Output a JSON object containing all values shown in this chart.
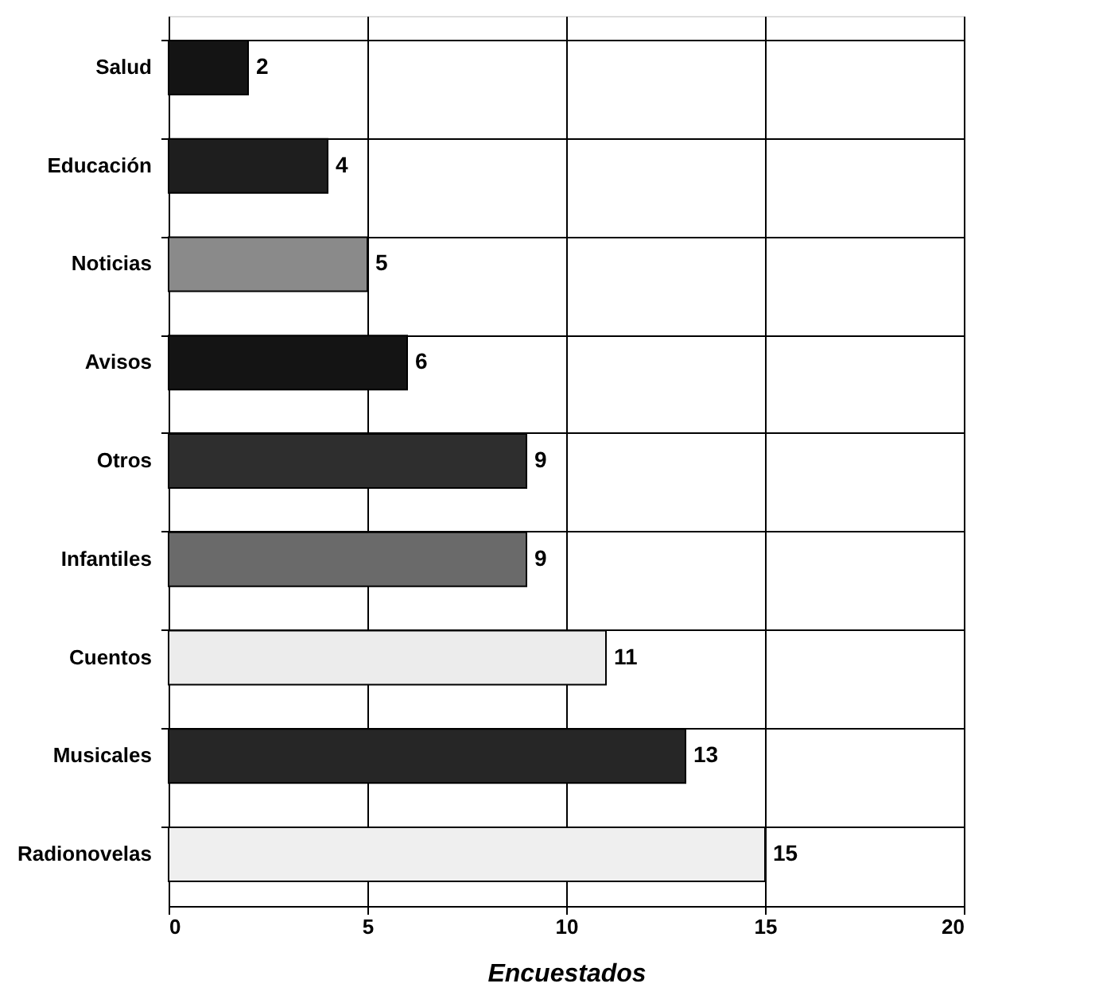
{
  "chart_data": {
    "type": "bar",
    "orientation": "horizontal",
    "xlabel": "Encuestados",
    "categories": [
      "Salud",
      "Educación",
      "Noticias",
      "Avisos",
      "Otros",
      "Infantiles",
      "Cuentos",
      "Musicales",
      "Radionovelas"
    ],
    "values": [
      2,
      4,
      5,
      6,
      9,
      9,
      11,
      13,
      15
    ],
    "colors": [
      "#141414",
      "#1e1e1e",
      "#8a8a8a",
      "#141414",
      "#2e2e2e",
      "#6a6a6a",
      "#ececec",
      "#262626",
      "#efefef"
    ],
    "xlim": [
      0,
      20
    ],
    "xticks": [
      0,
      5,
      10,
      15,
      20
    ],
    "grid": true,
    "data_labels": true
  }
}
